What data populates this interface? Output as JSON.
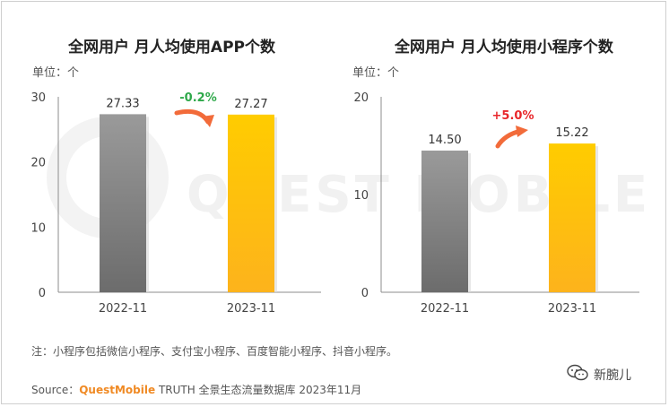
{
  "chart_data": [
    {
      "type": "bar",
      "title": "全网用户 月人均使用APP个数",
      "unit_label": "单位：个",
      "categories": [
        "2022-11",
        "2023-11"
      ],
      "values": [
        27.33,
        27.27
      ],
      "value_labels": [
        "27.33",
        "27.27"
      ],
      "ylim": [
        0,
        30
      ],
      "yticks": [
        0,
        10,
        20,
        30
      ],
      "change_label": "-0.2%",
      "change_color": "#2ea84a",
      "bar_colors": [
        "#8a8a8a",
        "#ffc20e"
      ]
    },
    {
      "type": "bar",
      "title": "全网用户 月人均使用小程序个数",
      "unit_label": "单位：个",
      "categories": [
        "2022-11",
        "2023-11"
      ],
      "values": [
        14.5,
        15.22
      ],
      "value_labels": [
        "14.50",
        "15.22"
      ],
      "ylim": [
        0,
        20
      ],
      "yticks": [
        0,
        10,
        20
      ],
      "change_label": "+5.0%",
      "change_color": "#e8262a",
      "bar_colors": [
        "#8a8a8a",
        "#ffc20e"
      ]
    }
  ],
  "footnote": "注：小程序包括微信小程序、支付宝小程序、百度智能小程序、抖音小程序。",
  "source": {
    "prefix": "Source：",
    "brand": "QuestMobile",
    "suffix": " TRUTH 全景生态流量数据库 2023年11月"
  },
  "watermark": "QUEST MOBILE",
  "logo": {
    "icon": "wechat-icon",
    "text": "新腕儿"
  },
  "colors": {
    "arrow": "#f26b3a",
    "axis": "#999999"
  }
}
